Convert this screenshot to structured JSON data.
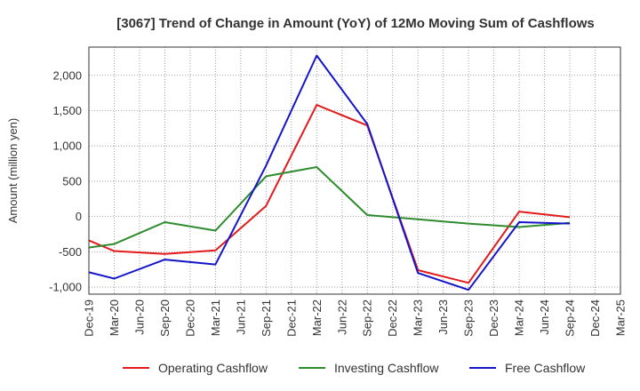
{
  "chart_data": {
    "type": "line",
    "title": "[3067]  Trend of Change in Amount (YoY) of 12Mo Moving Sum of Cashflows",
    "xlabel": "",
    "ylabel": "Amount (million yen)",
    "categories": [
      "Dec-19",
      "Mar-20",
      "Jun-20",
      "Sep-20",
      "Dec-20",
      "Mar-21",
      "Jun-21",
      "Sep-21",
      "Dec-21",
      "Mar-22",
      "Jun-22",
      "Sep-22",
      "Dec-22",
      "Mar-23",
      "Jun-23",
      "Sep-23",
      "Dec-23",
      "Mar-24",
      "Jun-24",
      "Sep-24",
      "Dec-24",
      "Mar-25"
    ],
    "ylim": [
      -1100,
      2400
    ],
    "yticks": [
      -1000,
      -500,
      0,
      500,
      1000,
      1500,
      2000
    ],
    "ytick_labels": [
      "-1,000",
      "-500",
      "0",
      "500",
      "1,000",
      "1,500",
      "2,000"
    ],
    "grid": true,
    "legend_position": "bottom",
    "series": [
      {
        "name": "Operating Cashflow",
        "color": "#e31a1c",
        "points": [
          [
            0,
            -340
          ],
          [
            1,
            -490
          ],
          [
            3,
            -530
          ],
          [
            5,
            -480
          ],
          [
            7,
            150
          ],
          [
            9,
            1580
          ],
          [
            11,
            1290
          ],
          [
            13,
            -760
          ],
          [
            15,
            -940
          ],
          [
            17,
            70
          ],
          [
            19,
            -10
          ]
        ]
      },
      {
        "name": "Investing Cashflow",
        "color": "#2e8b2e",
        "points": [
          [
            0,
            -440
          ],
          [
            1,
            -390
          ],
          [
            3,
            -80
          ],
          [
            5,
            -200
          ],
          [
            7,
            570
          ],
          [
            9,
            700
          ],
          [
            11,
            20
          ],
          [
            13,
            -40
          ],
          [
            15,
            -100
          ],
          [
            17,
            -150
          ],
          [
            19,
            -90
          ]
        ]
      },
      {
        "name": "Free Cashflow",
        "color": "#1515c8",
        "points": [
          [
            0,
            -790
          ],
          [
            1,
            -880
          ],
          [
            3,
            -610
          ],
          [
            5,
            -680
          ],
          [
            7,
            720
          ],
          [
            9,
            2280
          ],
          [
            11,
            1310
          ],
          [
            13,
            -800
          ],
          [
            15,
            -1040
          ],
          [
            17,
            -80
          ],
          [
            19,
            -100
          ]
        ]
      }
    ]
  }
}
